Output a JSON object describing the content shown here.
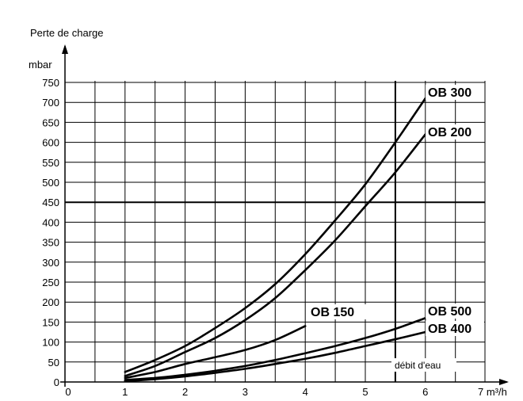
{
  "chart_data": {
    "type": "line",
    "ylabel": "Perte de charge",
    "yunit": "mbar",
    "xunit": "7 m³/h",
    "xlim": [
      0,
      7
    ],
    "ylim": [
      0,
      750
    ],
    "xticks": [
      "0",
      "1",
      "2",
      "3",
      "4",
      "5",
      "6"
    ],
    "yticks": [
      "0",
      "50",
      "100",
      "150",
      "200",
      "250",
      "300",
      "350",
      "400",
      "450",
      "500",
      "550",
      "600",
      "650",
      "700",
      "750"
    ],
    "grid": true,
    "reference_lines": {
      "x": 5.5,
      "y": 450
    },
    "annotation": "débit d'eau",
    "series": [
      {
        "name": "OB 300",
        "x": [
          1,
          1.5,
          2,
          2.5,
          3,
          3.5,
          4,
          4.5,
          5,
          5.5,
          6
        ],
        "values": [
          25,
          55,
          90,
          135,
          185,
          245,
          320,
          405,
          495,
          600,
          710
        ]
      },
      {
        "name": "OB 200",
        "x": [
          1,
          1.5,
          2,
          2.5,
          3,
          3.5,
          4,
          4.5,
          5,
          5.5,
          6
        ],
        "values": [
          15,
          40,
          75,
          110,
          155,
          210,
          280,
          355,
          440,
          525,
          620
        ]
      },
      {
        "name": "OB 150",
        "x": [
          1,
          1.5,
          2,
          2.5,
          3,
          3.5,
          4
        ],
        "values": [
          10,
          25,
          45,
          62,
          80,
          105,
          140
        ]
      },
      {
        "name": "OB 500",
        "x": [
          1,
          1.5,
          2,
          2.5,
          3,
          3.5,
          4,
          4.5,
          5,
          5.5,
          6
        ],
        "values": [
          5,
          10,
          18,
          28,
          40,
          55,
          72,
          90,
          110,
          133,
          160
        ]
      },
      {
        "name": "OB 400",
        "x": [
          1,
          1.5,
          2,
          2.5,
          3,
          3.5,
          4,
          4.5,
          5,
          5.5,
          6
        ],
        "values": [
          2,
          7,
          14,
          23,
          33,
          45,
          58,
          73,
          90,
          107,
          125
        ]
      }
    ]
  }
}
